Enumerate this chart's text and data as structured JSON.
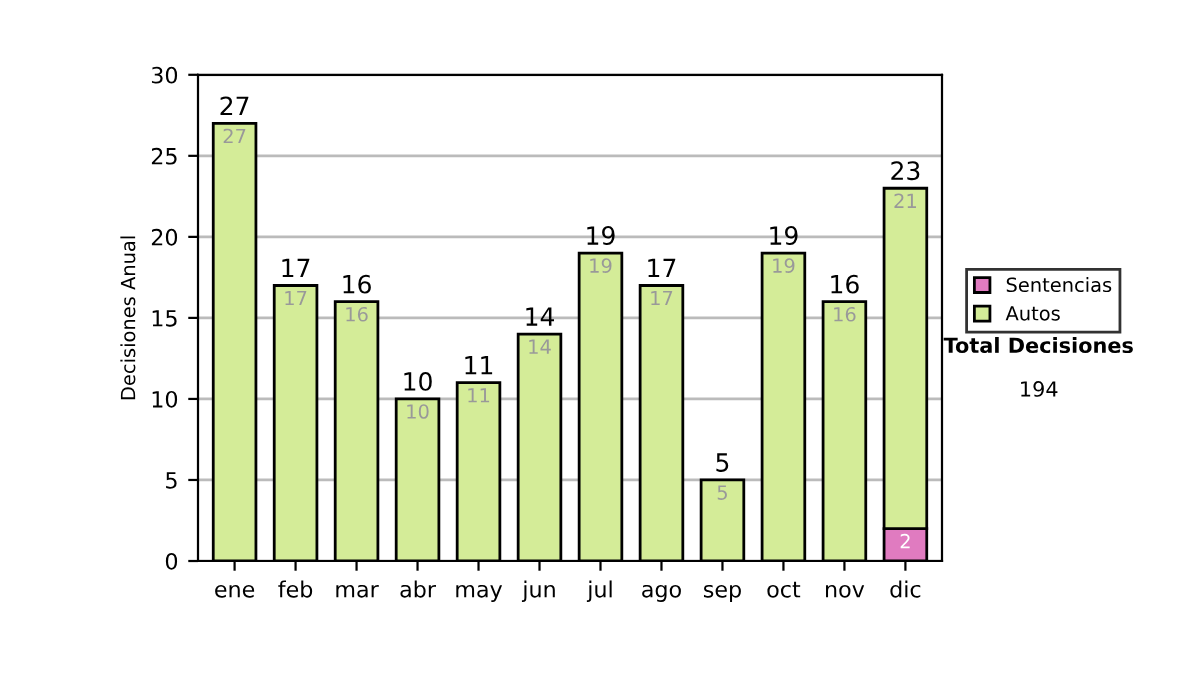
{
  "chart_data": {
    "type": "bar",
    "stacked": true,
    "ylabel": "Decisiones Anual",
    "categories": [
      "ene",
      "feb",
      "mar",
      "abr",
      "may",
      "jun",
      "jul",
      "ago",
      "sep",
      "oct",
      "nov",
      "dic"
    ],
    "series": [
      {
        "name": "Sentencias",
        "color": "#e07bc0",
        "values": [
          0,
          0,
          0,
          0,
          0,
          0,
          0,
          0,
          0,
          0,
          0,
          2
        ],
        "value_labels": [
          null,
          null,
          null,
          null,
          null,
          null,
          null,
          null,
          null,
          null,
          null,
          "2"
        ]
      },
      {
        "name": "Autos",
        "color": "#d4ec98",
        "values": [
          27,
          17,
          16,
          10,
          11,
          14,
          19,
          17,
          5,
          19,
          16,
          21
        ],
        "value_labels": [
          "27",
          "17",
          "16",
          "10",
          "11",
          "14",
          "19",
          "17",
          "5",
          "19",
          "16",
          "21"
        ]
      }
    ],
    "totals": [
      "27",
      "17",
      "16",
      "10",
      "11",
      "14",
      "19",
      "17",
      "5",
      "19",
      "16",
      "23"
    ],
    "ylim": [
      0,
      30
    ],
    "yticks": [
      0,
      5,
      10,
      15,
      20,
      25,
      30
    ],
    "grid": "y",
    "legend": "right",
    "annotations": [
      "Total Decisiones",
      "194"
    ]
  }
}
